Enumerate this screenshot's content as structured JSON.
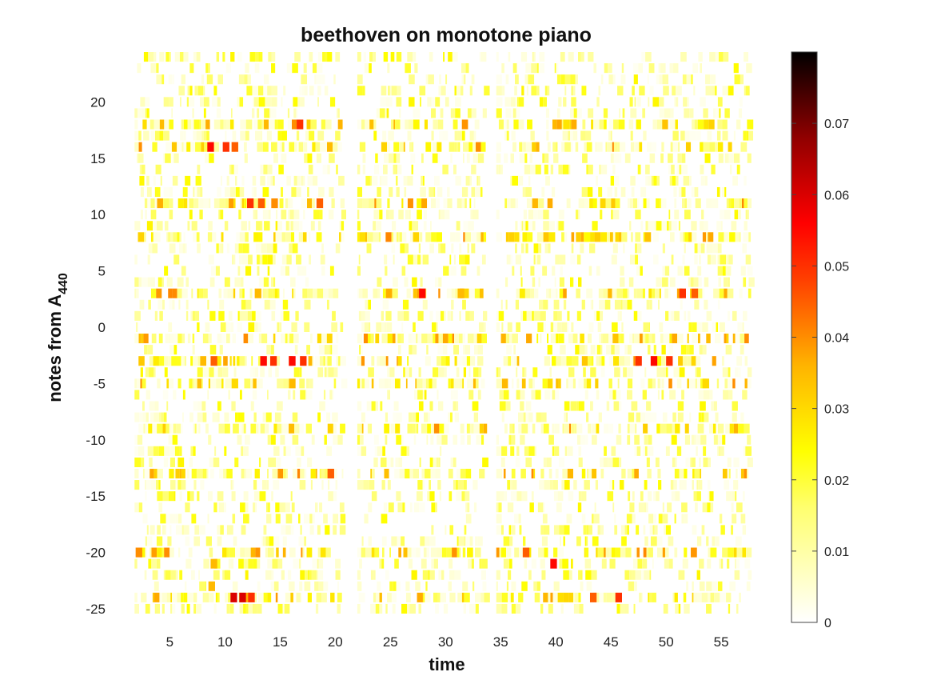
{
  "chart_data": {
    "type": "heatmap",
    "title": "beethoven on monotone piano",
    "xlabel": "time",
    "ylabel_main": "notes from A",
    "ylabel_sub": "440",
    "xlim": [
      1.2,
      57.6
    ],
    "ylim": [
      -25.5,
      24.5
    ],
    "xticks": [
      "5",
      "10",
      "15",
      "20",
      "25",
      "30",
      "35",
      "40",
      "45",
      "50",
      "55"
    ],
    "yticks": [
      "20",
      "15",
      "10",
      "5",
      "0",
      "-5",
      "-10",
      "-15",
      "-20",
      "-25"
    ],
    "xtick_values": [
      5,
      10,
      15,
      20,
      25,
      30,
      35,
      40,
      45,
      50,
      55
    ],
    "ytick_values": [
      20,
      15,
      10,
      5,
      0,
      -5,
      -10,
      -15,
      -20,
      -25
    ],
    "colormap": "hot (reversed)",
    "colorbar": {
      "range": [
        0,
        0.08
      ],
      "ticks": [
        "0",
        "0.01",
        "0.02",
        "0.03",
        "0.04",
        "0.05",
        "0.06",
        "0.07"
      ],
      "tick_values": [
        0,
        0.01,
        0.02,
        0.03,
        0.04,
        0.05,
        0.06,
        0.07
      ]
    },
    "active_intervals": [
      [
        1.8,
        20.6
      ],
      [
        22.0,
        33.5
      ],
      [
        34.6,
        57.5
      ]
    ],
    "highlights": [
      {
        "note": 16,
        "time": 8.7,
        "value": 0.055
      },
      {
        "note": 16,
        "time": 10.1,
        "value": 0.05
      },
      {
        "note": 16,
        "time": 10.9,
        "value": 0.045
      },
      {
        "note": 11,
        "time": 12.3,
        "value": 0.05
      },
      {
        "note": 11,
        "time": 13.3,
        "value": 0.045
      },
      {
        "note": 11,
        "time": 14.5,
        "value": 0.04
      },
      {
        "note": 11,
        "time": 18.6,
        "value": 0.045
      },
      {
        "note": 18,
        "time": 16.8,
        "value": 0.05
      },
      {
        "note": 3,
        "time": 13.0,
        "value": 0.035
      },
      {
        "note": 3,
        "time": 27.9,
        "value": 0.055
      },
      {
        "note": 3,
        "time": 31.4,
        "value": 0.035
      },
      {
        "note": 3,
        "time": 51.5,
        "value": 0.05
      },
      {
        "note": 3,
        "time": 52.6,
        "value": 0.045
      },
      {
        "note": -3,
        "time": 9.0,
        "value": 0.045
      },
      {
        "note": -3,
        "time": 13.5,
        "value": 0.055
      },
      {
        "note": -3,
        "time": 14.4,
        "value": 0.05
      },
      {
        "note": -3,
        "time": 16.1,
        "value": 0.055
      },
      {
        "note": -3,
        "time": 17.1,
        "value": 0.05
      },
      {
        "note": -3,
        "time": 47.5,
        "value": 0.05
      },
      {
        "note": -3,
        "time": 48.9,
        "value": 0.055
      },
      {
        "note": -3,
        "time": 50.3,
        "value": 0.05
      },
      {
        "note": -5,
        "time": 10.9,
        "value": 0.03
      },
      {
        "note": -5,
        "time": 16.1,
        "value": 0.035
      },
      {
        "note": -5,
        "time": 53.6,
        "value": 0.03
      },
      {
        "note": -13,
        "time": 19.6,
        "value": 0.045
      },
      {
        "note": -20,
        "time": 2.2,
        "value": 0.04
      },
      {
        "note": -20,
        "time": 37.3,
        "value": 0.045
      },
      {
        "note": -21,
        "time": 39.8,
        "value": 0.055
      },
      {
        "note": -21,
        "time": 9.0,
        "value": 0.035
      },
      {
        "note": -23,
        "time": 8.8,
        "value": 0.035
      },
      {
        "note": -24,
        "time": 10.8,
        "value": 0.06
      },
      {
        "note": -24,
        "time": 11.6,
        "value": 0.06
      },
      {
        "note": -24,
        "time": 12.4,
        "value": 0.05
      },
      {
        "note": -24,
        "time": 43.4,
        "value": 0.045
      },
      {
        "note": -24,
        "time": 45.7,
        "value": 0.05
      }
    ]
  }
}
